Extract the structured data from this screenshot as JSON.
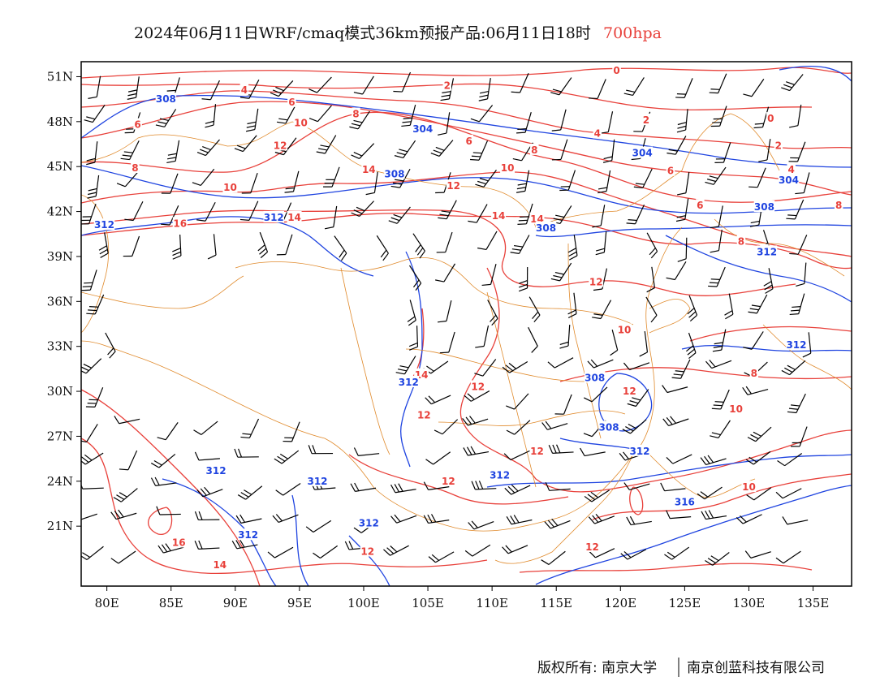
{
  "title": {
    "main": "2024年06月11日WRF/cmaq模式36km预报产品:06月11日18时",
    "level": "700hpa"
  },
  "colors": {
    "temperature": "#e8403a",
    "geopotential": "#1f44e0",
    "boundary": "#e08a2c",
    "wind": "#000000",
    "level_text": "#e8403a"
  },
  "map": {
    "lon_range": [
      78,
      138
    ],
    "lat_range": [
      17,
      52
    ],
    "x_ticks": [
      "80E",
      "85E",
      "90E",
      "95E",
      "100E",
      "105E",
      "110E",
      "115E",
      "120E",
      "125E",
      "130E",
      "135E"
    ],
    "y_ticks": [
      "51N",
      "48N",
      "45N",
      "42N",
      "39N",
      "36N",
      "33N",
      "30N",
      "27N",
      "24N",
      "21N"
    ]
  },
  "temperature_labels": [
    {
      "text": "0",
      "lon": 119.7,
      "lat": 51.4
    },
    {
      "text": "0",
      "lon": 131.7,
      "lat": 48.2
    },
    {
      "text": "2",
      "lon": 106.5,
      "lat": 50.4
    },
    {
      "text": "2",
      "lon": 122.0,
      "lat": 48.1
    },
    {
      "text": "2",
      "lon": 132.3,
      "lat": 46.4
    },
    {
      "text": "4",
      "lon": 90.7,
      "lat": 50.1
    },
    {
      "text": "4",
      "lon": 118.2,
      "lat": 47.2
    },
    {
      "text": "4",
      "lon": 133.3,
      "lat": 44.8
    },
    {
      "text": "6",
      "lon": 94.4,
      "lat": 49.3
    },
    {
      "text": "6",
      "lon": 108.2,
      "lat": 46.7
    },
    {
      "text": "6",
      "lon": 123.9,
      "lat": 44.7
    },
    {
      "text": "6",
      "lon": 82.4,
      "lat": 47.8
    },
    {
      "text": "6",
      "lon": 126.2,
      "lat": 42.4
    },
    {
      "text": "6",
      "lon": 131.2,
      "lat": 39.4
    },
    {
      "text": "8",
      "lon": 99.4,
      "lat": 48.5
    },
    {
      "text": "8",
      "lon": 113.3,
      "lat": 46.1
    },
    {
      "text": "8",
      "lon": 82.2,
      "lat": 44.9
    },
    {
      "text": "8",
      "lon": 137.0,
      "lat": 42.4
    },
    {
      "text": "8",
      "lon": 129.4,
      "lat": 40.0
    },
    {
      "text": "8",
      "lon": 130.4,
      "lat": 31.2
    },
    {
      "text": "10",
      "lon": 95.1,
      "lat": 47.9
    },
    {
      "text": "10",
      "lon": 111.2,
      "lat": 44.9
    },
    {
      "text": "10",
      "lon": 89.6,
      "lat": 43.6
    },
    {
      "text": "10",
      "lon": 120.3,
      "lat": 34.1
    },
    {
      "text": "10",
      "lon": 129.0,
      "lat": 28.8
    },
    {
      "text": "10",
      "lon": 130.0,
      "lat": 23.6
    },
    {
      "text": "12",
      "lon": 93.5,
      "lat": 46.4
    },
    {
      "text": "12",
      "lon": 107.0,
      "lat": 43.7
    },
    {
      "text": "12",
      "lon": 118.1,
      "lat": 37.3
    },
    {
      "text": "12",
      "lon": 120.7,
      "lat": 30.0
    },
    {
      "text": "12",
      "lon": 108.9,
      "lat": 30.3
    },
    {
      "text": "12",
      "lon": 104.7,
      "lat": 28.4
    },
    {
      "text": "12",
      "lon": 113.5,
      "lat": 26.0
    },
    {
      "text": "12",
      "lon": 106.6,
      "lat": 24.0
    },
    {
      "text": "12",
      "lon": 117.8,
      "lat": 19.6
    },
    {
      "text": "12",
      "lon": 100.3,
      "lat": 19.3
    },
    {
      "text": "14",
      "lon": 100.4,
      "lat": 44.8
    },
    {
      "text": "14",
      "lon": 94.6,
      "lat": 41.6
    },
    {
      "text": "14",
      "lon": 110.5,
      "lat": 41.7
    },
    {
      "text": "14",
      "lon": 113.5,
      "lat": 41.5
    },
    {
      "text": "14",
      "lon": 104.5,
      "lat": 31.1
    },
    {
      "text": "14",
      "lon": 88.8,
      "lat": 18.4
    },
    {
      "text": "16",
      "lon": 85.7,
      "lat": 41.2
    },
    {
      "text": "16",
      "lon": 85.6,
      "lat": 19.9
    }
  ],
  "height_labels": [
    {
      "text": "308",
      "lon": 84.6,
      "lat": 49.5
    },
    {
      "text": "304",
      "lon": 104.6,
      "lat": 47.5
    },
    {
      "text": "304",
      "lon": 121.7,
      "lat": 45.9
    },
    {
      "text": "308",
      "lon": 102.4,
      "lat": 44.5
    },
    {
      "text": "304",
      "lon": 133.1,
      "lat": 44.1
    },
    {
      "text": "308",
      "lon": 131.2,
      "lat": 42.3
    },
    {
      "text": "312",
      "lon": 79.8,
      "lat": 41.1
    },
    {
      "text": "312",
      "lon": 93.0,
      "lat": 41.6
    },
    {
      "text": "308",
      "lon": 114.2,
      "lat": 40.9
    },
    {
      "text": "312",
      "lon": 131.4,
      "lat": 39.3
    },
    {
      "text": "312",
      "lon": 133.7,
      "lat": 33.1
    },
    {
      "text": "308",
      "lon": 118.0,
      "lat": 30.9
    },
    {
      "text": "312",
      "lon": 103.5,
      "lat": 30.6
    },
    {
      "text": "308",
      "lon": 119.1,
      "lat": 27.6
    },
    {
      "text": "312",
      "lon": 121.5,
      "lat": 26.0
    },
    {
      "text": "312",
      "lon": 88.5,
      "lat": 24.7
    },
    {
      "text": "312",
      "lon": 96.4,
      "lat": 24.0
    },
    {
      "text": "312",
      "lon": 110.6,
      "lat": 24.4
    },
    {
      "text": "316",
      "lon": 125.0,
      "lat": 22.6
    },
    {
      "text": "312",
      "lon": 91.0,
      "lat": 20.4
    },
    {
      "text": "312",
      "lon": 100.4,
      "lat": 21.2
    }
  ],
  "footer": {
    "copyright": "版权所有: 南京大学",
    "company": "南京创蓝科技有限公司"
  }
}
